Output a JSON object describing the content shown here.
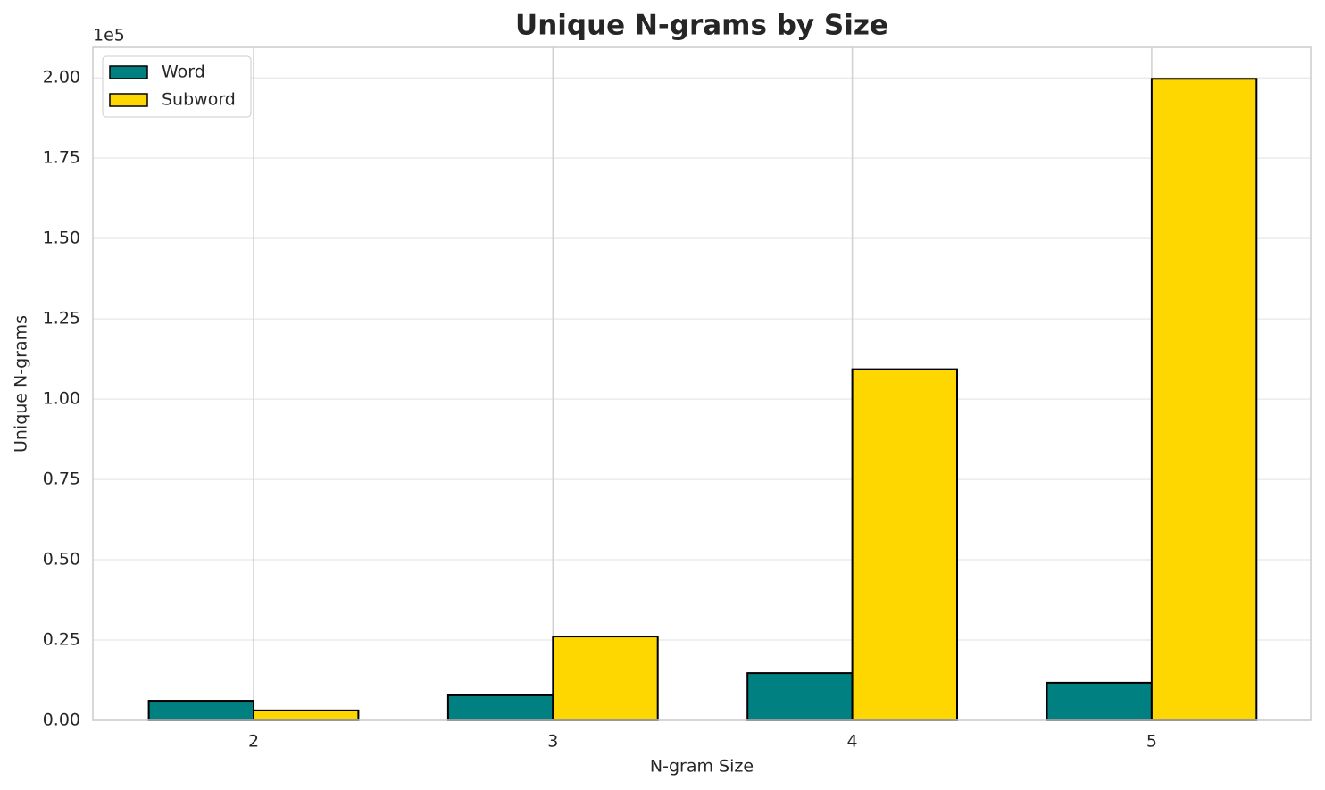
{
  "chart_data": {
    "type": "bar",
    "title": "Unique N-grams by Size",
    "x_label": "N-gram Size",
    "y_label": "Unique N-grams",
    "y_offset_label": "1e5",
    "categories": [
      "2",
      "3",
      "4",
      "5"
    ],
    "series": [
      {
        "name": "Word",
        "color": "#008080",
        "values": [
          6100,
          7800,
          14700,
          11700
        ]
      },
      {
        "name": "Subword",
        "color": "#ffd700",
        "values": [
          3100,
          26100,
          109300,
          199700
        ]
      }
    ],
    "ylim": [
      0,
      209500
    ],
    "yticks": [
      {
        "value": 0,
        "label": "0.00"
      },
      {
        "value": 25000,
        "label": "0.25"
      },
      {
        "value": 50000,
        "label": "0.50"
      },
      {
        "value": 75000,
        "label": "0.75"
      },
      {
        "value": 100000,
        "label": "1.00"
      },
      {
        "value": 125000,
        "label": "1.25"
      },
      {
        "value": 150000,
        "label": "1.50"
      },
      {
        "value": 175000,
        "label": "1.75"
      },
      {
        "value": 200000,
        "label": "2.00"
      }
    ],
    "grid": true,
    "legend": "upper-left"
  }
}
